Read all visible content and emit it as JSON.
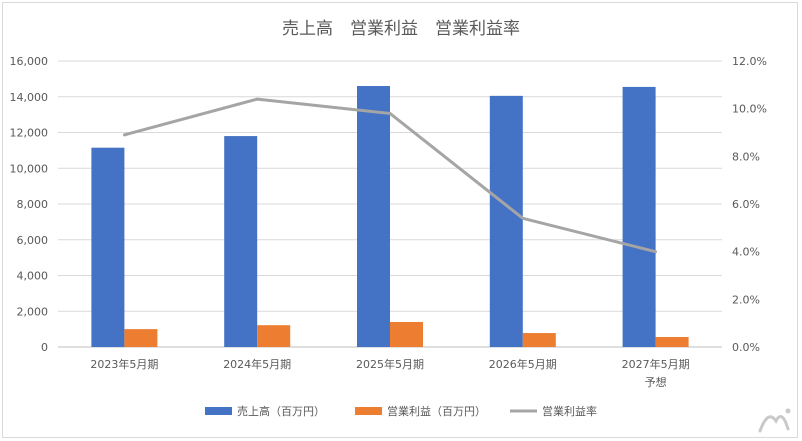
{
  "chart_data": {
    "type": "bar",
    "title": "売上高　営業利益　営業利益率",
    "categories": [
      "2023年5月期",
      "2024年5月期",
      "2025年5月期",
      "2026年5月期",
      "2027年5月期"
    ],
    "category_sublabels": [
      "",
      "",
      "",
      "",
      "予想"
    ],
    "series": [
      {
        "name": "売上高（百万円）",
        "kind": "bar",
        "axis": "left",
        "color": "#4472C4",
        "values": [
          11150,
          11800,
          14600,
          14050,
          14550
        ]
      },
      {
        "name": "営業利益（百万円）",
        "kind": "bar",
        "axis": "left",
        "color": "#ED7D31",
        "values": [
          1000,
          1220,
          1400,
          780,
          560
        ]
      },
      {
        "name": "営業利益率",
        "kind": "line",
        "axis": "right",
        "color": "#A5A5A5",
        "values": [
          8.9,
          10.4,
          9.8,
          5.4,
          4.0
        ]
      }
    ],
    "y_left": {
      "min": 0,
      "max": 16000,
      "step": 2000,
      "tick_labels": [
        "0",
        "2,000",
        "4,000",
        "6,000",
        "8,000",
        "10,000",
        "12,000",
        "14,000",
        "16,000"
      ]
    },
    "y_right": {
      "min": 0,
      "max": 12,
      "step": 2,
      "tick_labels": [
        "0.0%",
        "2.0%",
        "4.0%",
        "6.0%",
        "8.0%",
        "10.0%",
        "12.0%"
      ]
    },
    "grid": true,
    "legend_position": "bottom"
  }
}
